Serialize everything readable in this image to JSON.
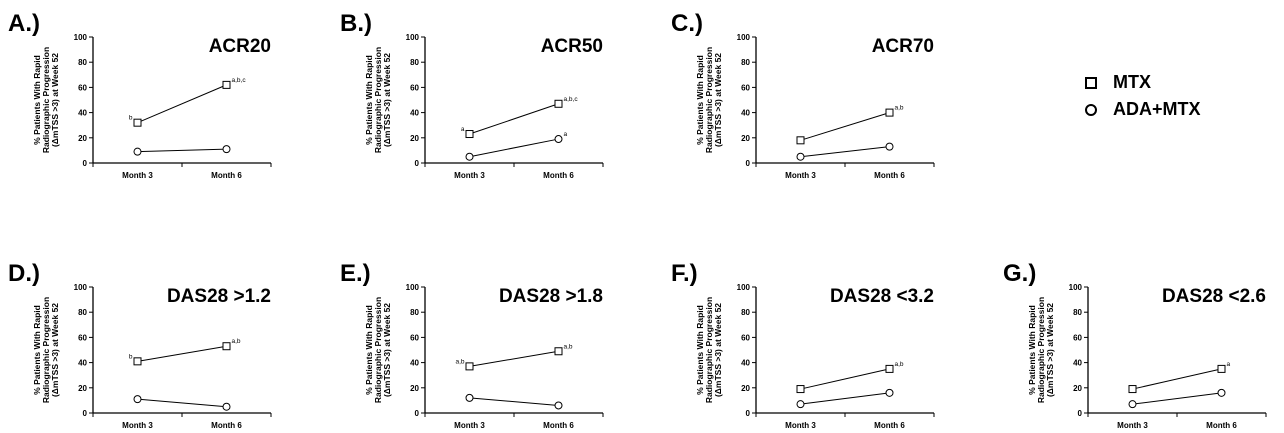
{
  "ylabel_lines": [
    "% Patients With Rapid",
    "Radiographic Progression",
    "(ΔmTSS >3) at Week 52"
  ],
  "legend": [
    {
      "label": "MTX",
      "marker": "square"
    },
    {
      "label": "ADA+MTX",
      "marker": "circle"
    }
  ],
  "chart_data": [
    {
      "type": "line",
      "panel_label": "A.)",
      "title": "ACR20",
      "categories": [
        "Month 3",
        "Month 6"
      ],
      "ylim": [
        0,
        100
      ],
      "yticks": [
        0,
        20,
        40,
        60,
        80,
        100
      ],
      "series": [
        {
          "name": "MTX",
          "marker": "square",
          "values": [
            32,
            62
          ],
          "annotations": [
            "b",
            "a,b,c"
          ]
        },
        {
          "name": "ADA+MTX",
          "marker": "circle",
          "values": [
            9,
            11
          ],
          "annotations": [
            "",
            ""
          ]
        }
      ]
    },
    {
      "type": "line",
      "panel_label": "B.)",
      "title": "ACR50",
      "categories": [
        "Month 3",
        "Month 6"
      ],
      "ylim": [
        0,
        100
      ],
      "yticks": [
        0,
        20,
        40,
        60,
        80,
        100
      ],
      "series": [
        {
          "name": "MTX",
          "marker": "square",
          "values": [
            23,
            47
          ],
          "annotations": [
            "a",
            "a,b,c"
          ]
        },
        {
          "name": "ADA+MTX",
          "marker": "circle",
          "values": [
            5,
            19
          ],
          "annotations": [
            "",
            "a"
          ]
        }
      ]
    },
    {
      "type": "line",
      "panel_label": "C.)",
      "title": "ACR70",
      "categories": [
        "Month 3",
        "Month 6"
      ],
      "ylim": [
        0,
        100
      ],
      "yticks": [
        0,
        20,
        40,
        60,
        80,
        100
      ],
      "series": [
        {
          "name": "MTX",
          "marker": "square",
          "values": [
            18,
            40
          ],
          "annotations": [
            "",
            "a,b"
          ]
        },
        {
          "name": "ADA+MTX",
          "marker": "circle",
          "values": [
            5,
            13
          ],
          "annotations": [
            "",
            ""
          ]
        }
      ]
    },
    {
      "type": "line",
      "panel_label": "D.)",
      "title": "DAS28 >1.2",
      "categories": [
        "Month 3",
        "Month 6"
      ],
      "ylim": [
        0,
        100
      ],
      "yticks": [
        0,
        20,
        40,
        60,
        80,
        100
      ],
      "series": [
        {
          "name": "MTX",
          "marker": "square",
          "values": [
            41,
            53
          ],
          "annotations": [
            "b",
            "a,b"
          ]
        },
        {
          "name": "ADA+MTX",
          "marker": "circle",
          "values": [
            11,
            5
          ],
          "annotations": [
            "",
            ""
          ]
        }
      ]
    },
    {
      "type": "line",
      "panel_label": "E.)",
      "title": "DAS28 >1.8",
      "categories": [
        "Month 3",
        "Month 6"
      ],
      "ylim": [
        0,
        100
      ],
      "yticks": [
        0,
        20,
        40,
        60,
        80,
        100
      ],
      "series": [
        {
          "name": "MTX",
          "marker": "square",
          "values": [
            37,
            49
          ],
          "annotations": [
            "a,b",
            "a,b"
          ]
        },
        {
          "name": "ADA+MTX",
          "marker": "circle",
          "values": [
            12,
            6
          ],
          "annotations": [
            "",
            ""
          ]
        }
      ]
    },
    {
      "type": "line",
      "panel_label": "F.)",
      "title": "DAS28 <3.2",
      "categories": [
        "Month 3",
        "Month 6"
      ],
      "ylim": [
        0,
        100
      ],
      "yticks": [
        0,
        20,
        40,
        60,
        80,
        100
      ],
      "series": [
        {
          "name": "MTX",
          "marker": "square",
          "values": [
            19,
            35
          ],
          "annotations": [
            "",
            "a,b"
          ]
        },
        {
          "name": "ADA+MTX",
          "marker": "circle",
          "values": [
            7,
            16
          ],
          "annotations": [
            "",
            ""
          ]
        }
      ]
    },
    {
      "type": "line",
      "panel_label": "G.)",
      "title": "DAS28 <2.6",
      "categories": [
        "Month 3",
        "Month 6"
      ],
      "ylim": [
        0,
        100
      ],
      "yticks": [
        0,
        20,
        40,
        60,
        80,
        100
      ],
      "series": [
        {
          "name": "MTX",
          "marker": "square",
          "values": [
            19,
            35
          ],
          "annotations": [
            "",
            "a"
          ]
        },
        {
          "name": "ADA+MTX",
          "marker": "circle",
          "values": [
            7,
            16
          ],
          "annotations": [
            "",
            ""
          ]
        }
      ]
    }
  ]
}
